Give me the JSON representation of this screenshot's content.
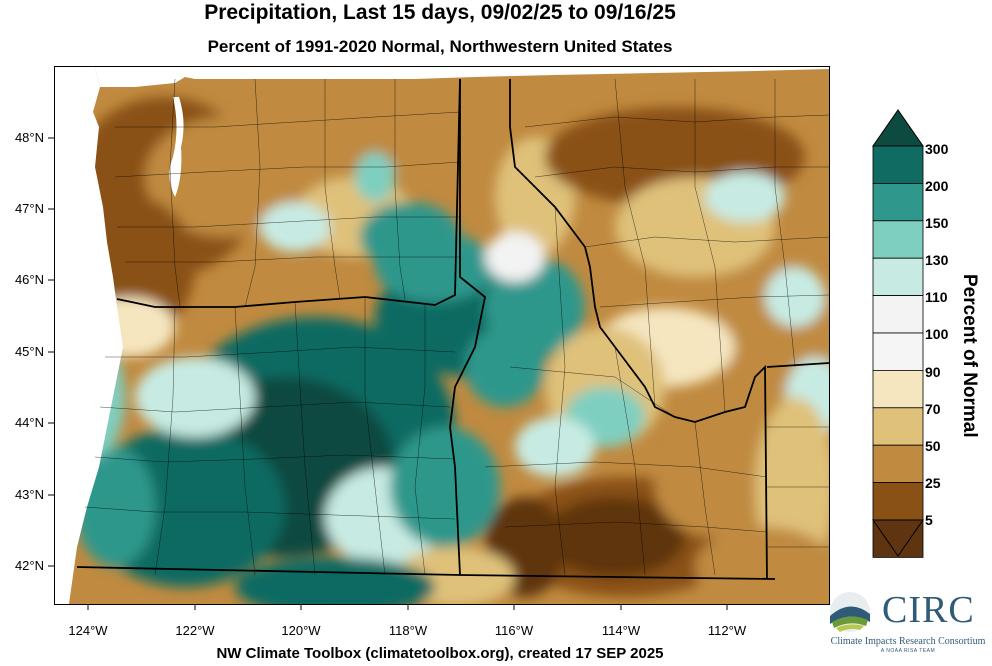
{
  "title": "Precipitation, Last 15 days, 09/02/25 to 09/16/25",
  "subtitle": "Percent of 1991-2020 Normal, Northwestern United States",
  "footer": "NW Climate Toolbox (climatetoolbox.org), created 17 SEP 2025",
  "axes": {
    "lat_ticks": [
      "48°N",
      "47°N",
      "46°N",
      "45°N",
      "44°N",
      "43°N",
      "42°N"
    ],
    "lon_ticks": [
      "124°W",
      "122°W",
      "120°W",
      "118°W",
      "116°W",
      "114°W",
      "112°W"
    ]
  },
  "legend": {
    "title": "Percent of Normal",
    "labels": [
      "300",
      "200",
      "150",
      "130",
      "110",
      "100",
      "90",
      "70",
      "50",
      "25",
      "5"
    ],
    "colors": [
      "#0d4a40",
      "#106b62",
      "#2f978c",
      "#7fcfc0",
      "#c7ebe3",
      "#f3f3f3",
      "#f5f5f5",
      "#f5e6c0",
      "#dfc17a",
      "#c08a40",
      "#8a5117",
      "#5e3411"
    ]
  },
  "logo": {
    "name": "CIRC",
    "subtitle": "Climate Impacts Research Consortium",
    "tagline": "A NOAA RISA TEAM"
  },
  "map": {
    "region": "Northwestern United States",
    "states": [
      "Washington",
      "Oregon",
      "Idaho",
      "Montana",
      "Wyoming"
    ],
    "colors": {
      "very_dry": "#5e3411",
      "dry": "#8a5117",
      "moderately_dry": "#c08a40",
      "slightly_dry": "#dfc17a",
      "near_normal": "#f5e6c0",
      "normal": "#f3f3f3",
      "slightly_wet": "#c7ebe3",
      "wet": "#7fcfc0",
      "very_wet": "#2f978c",
      "much_wet": "#106b62",
      "extreme_wet": "#0d4a40",
      "ocean": "#ffffff"
    }
  }
}
